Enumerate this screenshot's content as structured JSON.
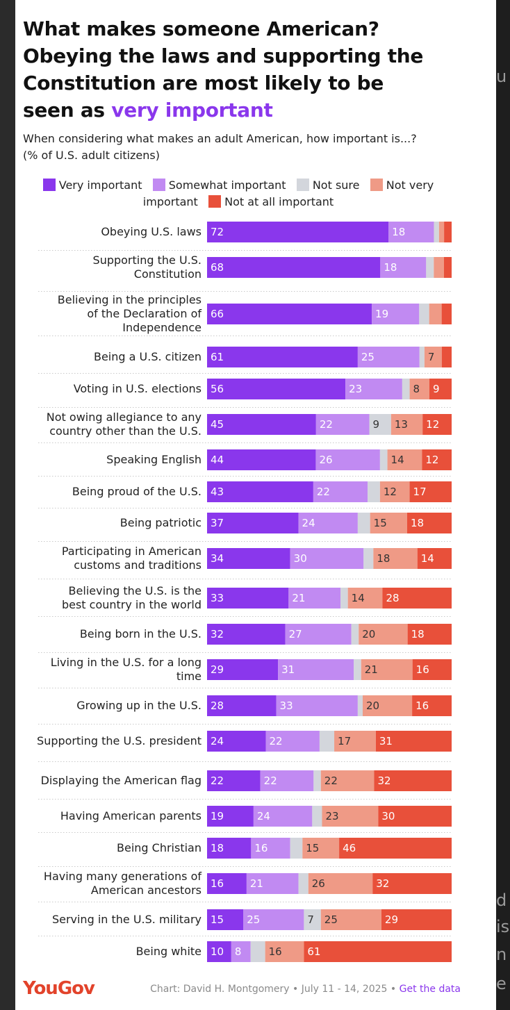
{
  "title": {
    "line1": "What makes someone American?",
    "line2": "Obeying the laws and supporting the",
    "line3": "Constitution are most likely to be",
    "line4_prefix": "seen as ",
    "line4_highlight": "very important"
  },
  "subtitle": {
    "line1": "When considering what makes an adult American, how important is...?",
    "line2": "(% of U.S. adult citizens)"
  },
  "colors": {
    "very": "#8a37ec",
    "somewhat": "#c18af2",
    "not_sure": "#d3d6dc",
    "not_very": "#ef9a86",
    "not_at_all": "#e8503a",
    "highlight": "#8a37ec",
    "brand": "#e2432b"
  },
  "footer": {
    "brand": "YouGov",
    "credit": "Chart: David H. Montgomery • July 11 - 14, 2025 • ",
    "link": "Get the data"
  },
  "edge_text": [
    "u",
    "d",
    "is",
    "n",
    "e"
  ],
  "chart_data": {
    "type": "bar",
    "orientation": "horizontal",
    "stacked": true,
    "title": "What makes someone American? Obeying the laws and supporting the Constitution are most likely to be seen as very important",
    "unit": "% of U.S. adult citizens",
    "legend": [
      {
        "key": "very",
        "label": "Very important"
      },
      {
        "key": "somewhat",
        "label": "Somewhat important"
      },
      {
        "key": "not_sure",
        "label": "Not sure"
      },
      {
        "key": "not_very",
        "label": "Not very important"
      },
      {
        "key": "not_at_all",
        "label": "Not at all important"
      }
    ],
    "rows": [
      {
        "label": "Obeying U.S. laws",
        "values": {
          "very": 72,
          "somewhat": 18,
          "not_sure": 2,
          "not_very": 2,
          "not_at_all": 3
        },
        "labeled": [
          "very",
          "somewhat"
        ]
      },
      {
        "label": "Supporting the U.S. Constitution",
        "values": {
          "very": 68,
          "somewhat": 18,
          "not_sure": 3,
          "not_very": 4,
          "not_at_all": 3
        },
        "labeled": [
          "very",
          "somewhat"
        ]
      },
      {
        "label": "Believing in the principles of the Declaration of Independence",
        "values": {
          "very": 66,
          "somewhat": 19,
          "not_sure": 4,
          "not_very": 5,
          "not_at_all": 4
        },
        "labeled": [
          "very",
          "somewhat"
        ]
      },
      {
        "label": "Being a U.S. citizen",
        "values": {
          "very": 61,
          "somewhat": 25,
          "not_sure": 2,
          "not_very": 7,
          "not_at_all": 4
        },
        "labeled": [
          "very",
          "somewhat",
          "not_very"
        ]
      },
      {
        "label": "Voting in U.S. elections",
        "values": {
          "very": 56,
          "somewhat": 23,
          "not_sure": 3,
          "not_very": 8,
          "not_at_all": 9
        },
        "labeled": [
          "very",
          "somewhat",
          "not_very",
          "not_at_all"
        ]
      },
      {
        "label": "Not owing allegiance to any country other than the U.S.",
        "values": {
          "very": 45,
          "somewhat": 22,
          "not_sure": 9,
          "not_very": 13,
          "not_at_all": 12
        },
        "labeled": [
          "very",
          "somewhat",
          "not_sure",
          "not_very",
          "not_at_all"
        ]
      },
      {
        "label": "Speaking English",
        "values": {
          "very": 44,
          "somewhat": 26,
          "not_sure": 3,
          "not_very": 14,
          "not_at_all": 12
        },
        "labeled": [
          "very",
          "somewhat",
          "not_very",
          "not_at_all"
        ]
      },
      {
        "label": "Being proud of the U.S.",
        "values": {
          "very": 43,
          "somewhat": 22,
          "not_sure": 5,
          "not_very": 12,
          "not_at_all": 17
        },
        "labeled": [
          "very",
          "somewhat",
          "not_very",
          "not_at_all"
        ]
      },
      {
        "label": "Being patriotic",
        "values": {
          "very": 37,
          "somewhat": 24,
          "not_sure": 5,
          "not_very": 15,
          "not_at_all": 18
        },
        "labeled": [
          "very",
          "somewhat",
          "not_very",
          "not_at_all"
        ]
      },
      {
        "label": "Participating in American customs and traditions",
        "values": {
          "very": 34,
          "somewhat": 30,
          "not_sure": 4,
          "not_very": 18,
          "not_at_all": 14
        },
        "labeled": [
          "very",
          "somewhat",
          "not_very",
          "not_at_all"
        ]
      },
      {
        "label": "Believing the U.S. is the best country in the world",
        "values": {
          "very": 33,
          "somewhat": 21,
          "not_sure": 3,
          "not_very": 14,
          "not_at_all": 28
        },
        "labeled": [
          "very",
          "somewhat",
          "not_very",
          "not_at_all"
        ]
      },
      {
        "label": "Being born in the U.S.",
        "values": {
          "very": 32,
          "somewhat": 27,
          "not_sure": 3,
          "not_very": 20,
          "not_at_all": 18
        },
        "labeled": [
          "very",
          "somewhat",
          "not_very",
          "not_at_all"
        ]
      },
      {
        "label": "Living in the U.S. for a long time",
        "values": {
          "very": 29,
          "somewhat": 31,
          "not_sure": 3,
          "not_very": 21,
          "not_at_all": 16
        },
        "labeled": [
          "very",
          "somewhat",
          "not_very",
          "not_at_all"
        ]
      },
      {
        "label": "Growing up in the U.S.",
        "values": {
          "very": 28,
          "somewhat": 33,
          "not_sure": 2,
          "not_very": 20,
          "not_at_all": 16
        },
        "labeled": [
          "very",
          "somewhat",
          "not_very",
          "not_at_all"
        ]
      },
      {
        "label": "Supporting the U.S. president",
        "values": {
          "very": 24,
          "somewhat": 22,
          "not_sure": 6,
          "not_very": 17,
          "not_at_all": 31
        },
        "labeled": [
          "very",
          "somewhat",
          "not_very",
          "not_at_all"
        ]
      },
      {
        "label": "Displaying the American flag",
        "values": {
          "very": 22,
          "somewhat": 22,
          "not_sure": 3,
          "not_very": 22,
          "not_at_all": 32
        },
        "labeled": [
          "very",
          "somewhat",
          "not_very",
          "not_at_all"
        ]
      },
      {
        "label": "Having American parents",
        "values": {
          "very": 19,
          "somewhat": 24,
          "not_sure": 4,
          "not_very": 23,
          "not_at_all": 30
        },
        "labeled": [
          "very",
          "somewhat",
          "not_very",
          "not_at_all"
        ]
      },
      {
        "label": "Being Christian",
        "values": {
          "very": 18,
          "somewhat": 16,
          "not_sure": 5,
          "not_very": 15,
          "not_at_all": 46
        },
        "labeled": [
          "very",
          "somewhat",
          "not_very",
          "not_at_all"
        ]
      },
      {
        "label": "Having many generations of American ancestors",
        "values": {
          "very": 16,
          "somewhat": 21,
          "not_sure": 4,
          "not_very": 26,
          "not_at_all": 32
        },
        "labeled": [
          "very",
          "somewhat",
          "not_very",
          "not_at_all"
        ]
      },
      {
        "label": "Serving in the U.S. military",
        "values": {
          "very": 15,
          "somewhat": 25,
          "not_sure": 7,
          "not_very": 25,
          "not_at_all": 29
        },
        "labeled": [
          "very",
          "somewhat",
          "not_sure",
          "not_very",
          "not_at_all"
        ]
      },
      {
        "label": "Being white",
        "values": {
          "very": 10,
          "somewhat": 8,
          "not_sure": 6,
          "not_very": 16,
          "not_at_all": 61
        },
        "labeled": [
          "very",
          "somewhat",
          "not_very",
          "not_at_all"
        ]
      }
    ]
  }
}
